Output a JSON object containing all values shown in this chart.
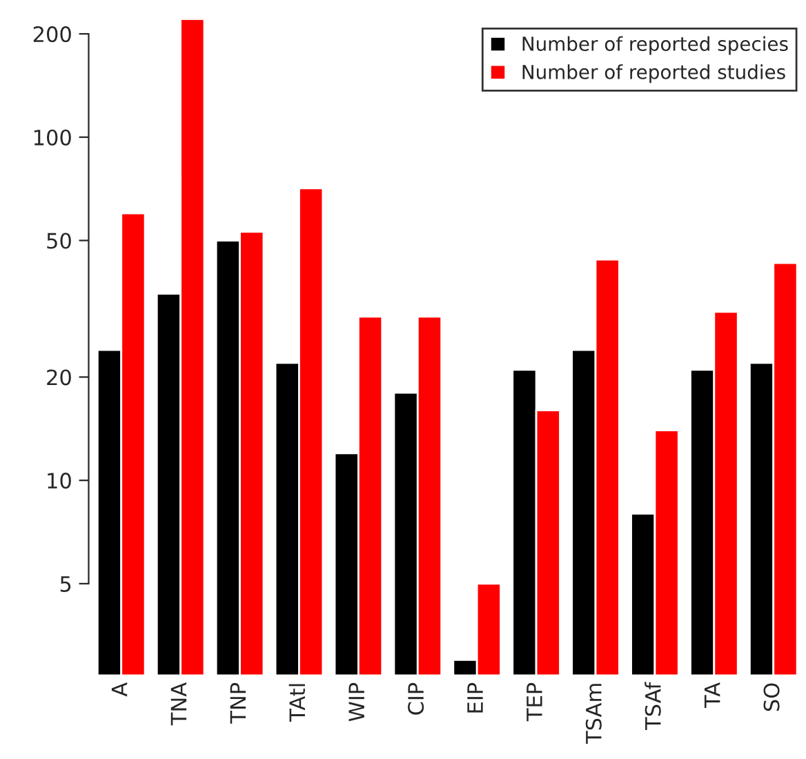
{
  "chart_data": {
    "type": "bar",
    "log": "y",
    "categories": [
      "A",
      "TNA",
      "TNP",
      "TAtl",
      "WIP",
      "CIP",
      "EIP",
      "TEP",
      "TSAm",
      "TSAf",
      "TA",
      "SO"
    ],
    "series": [
      {
        "name": "Number of reported species",
        "color": "#000000",
        "values": [
          24,
          35,
          50,
          22,
          12,
          18,
          3,
          21,
          24,
          8,
          21,
          22
        ]
      },
      {
        "name": "Number of reported studies",
        "color": "#ff0000",
        "values": [
          60,
          221,
          53,
          71,
          30,
          30,
          5,
          16,
          44,
          14,
          31,
          43
        ]
      }
    ],
    "ylim": [
      2.7,
      221
    ],
    "yticks": [
      5,
      10,
      20,
      50,
      100,
      200
    ],
    "grid": false,
    "legend": "top right"
  }
}
